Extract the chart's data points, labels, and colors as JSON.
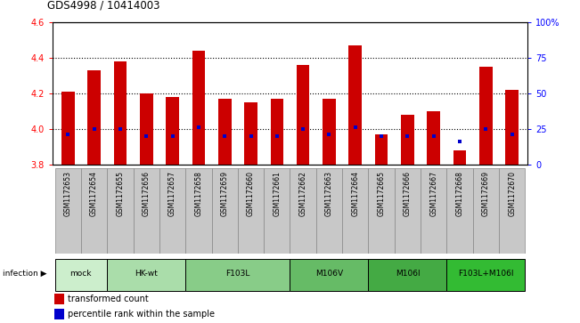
{
  "title": "GDS4998 / 10414003",
  "samples": [
    "GSM1172653",
    "GSM1172654",
    "GSM1172655",
    "GSM1172656",
    "GSM1172657",
    "GSM1172658",
    "GSM1172659",
    "GSM1172660",
    "GSM1172661",
    "GSM1172662",
    "GSM1172663",
    "GSM1172664",
    "GSM1172665",
    "GSM1172666",
    "GSM1172667",
    "GSM1172668",
    "GSM1172669",
    "GSM1172670"
  ],
  "bar_values": [
    4.21,
    4.33,
    4.38,
    4.2,
    4.18,
    4.44,
    4.17,
    4.15,
    4.17,
    4.36,
    4.17,
    4.47,
    3.97,
    4.08,
    4.1,
    3.88,
    4.35,
    4.22
  ],
  "percentile_values": [
    3.97,
    4.0,
    4.0,
    3.96,
    3.96,
    4.01,
    3.96,
    3.96,
    3.96,
    4.0,
    3.97,
    4.01,
    3.96,
    3.96,
    3.96,
    3.93,
    4.0,
    3.97
  ],
  "groups": [
    {
      "label": "mock",
      "start": 0,
      "end": 1,
      "color": "#cceecc"
    },
    {
      "label": "HK-wt",
      "start": 2,
      "end": 4,
      "color": "#aaddaa"
    },
    {
      "label": "F103L",
      "start": 5,
      "end": 8,
      "color": "#88cc88"
    },
    {
      "label": "M106V",
      "start": 9,
      "end": 11,
      "color": "#66bb66"
    },
    {
      "label": "M106I",
      "start": 12,
      "end": 14,
      "color": "#44aa44"
    },
    {
      "label": "F103L+M106I",
      "start": 15,
      "end": 17,
      "color": "#33bb33"
    }
  ],
  "ylim_left": [
    3.8,
    4.6
  ],
  "ylim_right": [
    0,
    100
  ],
  "yticks_left": [
    3.8,
    4.0,
    4.2,
    4.4,
    4.6
  ],
  "yticks_right": [
    0,
    25,
    50,
    75,
    100
  ],
  "ytick_right_labels": [
    "0",
    "25",
    "50",
    "75",
    "100%"
  ],
  "bar_color": "#cc0000",
  "percentile_color": "#0000cc",
  "bar_width": 0.5,
  "bar_bottom": 3.8,
  "infection_label": "infection",
  "sample_box_color": "#c8c8c8",
  "legend_items": [
    {
      "label": "transformed count",
      "color": "#cc0000"
    },
    {
      "label": "percentile rank within the sample",
      "color": "#0000cc"
    }
  ]
}
